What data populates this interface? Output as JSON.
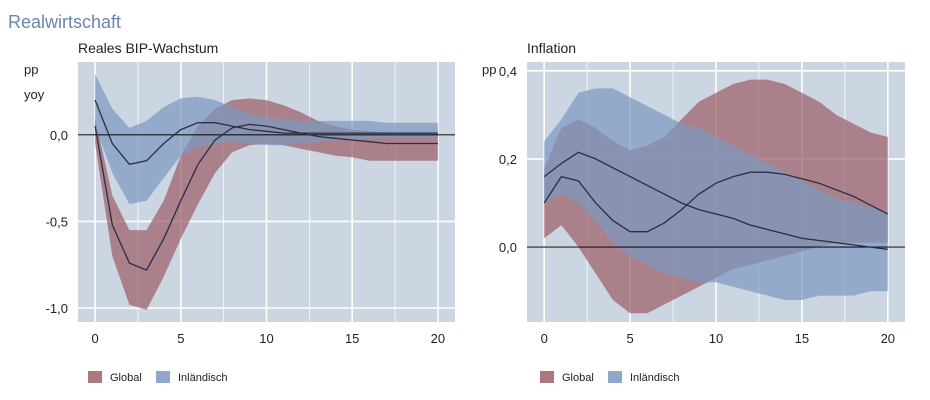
{
  "page_title": "Realwirtschaft",
  "colors": {
    "global": "#9c6068",
    "inlaendisch": "#7d98c0",
    "panel_bg": "#ccd6e2",
    "grid": "#ffffff"
  },
  "chart_data": [
    {
      "type": "area",
      "title": "Reales BIP-Wachstum",
      "ylabel": "pp yoy",
      "ylabel_lines": [
        "pp",
        "yoy"
      ],
      "xlim": [
        -1,
        21
      ],
      "ylim": [
        -1.08,
        0.42
      ],
      "xticks": [
        0,
        5,
        10,
        15,
        20
      ],
      "xtick_labels": [
        "0",
        "5",
        "10",
        "15",
        "20"
      ],
      "yticks": [
        0.0,
        -0.5,
        -1.0
      ],
      "ytick_labels": [
        "0,0",
        "-0,5",
        "-1,0"
      ],
      "grid": true,
      "legend_placement": "bottom-left",
      "x": [
        0,
        1,
        2,
        3,
        4,
        5,
        6,
        7,
        8,
        9,
        10,
        11,
        12,
        13,
        14,
        15,
        16,
        17,
        18,
        19,
        20
      ],
      "series": [
        {
          "name": "Global",
          "lower": [
            -0.05,
            -0.7,
            -0.98,
            -1.01,
            -0.82,
            -0.6,
            -0.4,
            -0.22,
            -0.1,
            -0.06,
            -0.05,
            -0.06,
            -0.08,
            -0.1,
            -0.12,
            -0.13,
            -0.15,
            -0.15,
            -0.15,
            -0.15,
            -0.15
          ],
          "upper": [
            0.1,
            -0.35,
            -0.55,
            -0.55,
            -0.38,
            -0.12,
            0.05,
            0.15,
            0.2,
            0.21,
            0.2,
            0.17,
            0.13,
            0.08,
            0.05,
            0.03,
            0.02,
            0.01,
            0.01,
            0.01,
            0.01
          ],
          "median": [
            0.05,
            -0.52,
            -0.74,
            -0.78,
            -0.6,
            -0.38,
            -0.17,
            -0.03,
            0.04,
            0.06,
            0.05,
            0.03,
            0.01,
            -0.01,
            -0.02,
            -0.03,
            -0.04,
            -0.05,
            -0.05,
            -0.05,
            -0.05
          ]
        },
        {
          "name": "Inländisch",
          "lower": [
            0.05,
            -0.22,
            -0.4,
            -0.38,
            -0.25,
            -0.12,
            -0.07,
            -0.05,
            -0.04,
            -0.05,
            -0.06,
            -0.06,
            -0.05,
            -0.04,
            -0.03,
            -0.03,
            -0.02,
            -0.02,
            -0.02,
            -0.02,
            -0.02
          ],
          "upper": [
            0.35,
            0.15,
            0.04,
            0.08,
            0.16,
            0.21,
            0.22,
            0.2,
            0.16,
            0.12,
            0.1,
            0.09,
            0.08,
            0.08,
            0.08,
            0.08,
            0.08,
            0.07,
            0.07,
            0.07,
            0.07
          ],
          "median": [
            0.2,
            -0.05,
            -0.17,
            -0.15,
            -0.05,
            0.03,
            0.07,
            0.07,
            0.05,
            0.03,
            0.02,
            0.01,
            0.01,
            0.01,
            0.01,
            0.01,
            0.01,
            0.01,
            0.01,
            0.01,
            0.01
          ]
        }
      ]
    },
    {
      "type": "area",
      "title": "Inflation",
      "ylabel": "pp",
      "ylabel_lines": [
        "pp"
      ],
      "xlim": [
        -1,
        21
      ],
      "ylim": [
        -0.17,
        0.42
      ],
      "xticks": [
        0,
        5,
        10,
        15,
        20
      ],
      "xtick_labels": [
        "0",
        "5",
        "10",
        "15",
        "20"
      ],
      "yticks": [
        0.4,
        0.2,
        0.0
      ],
      "ytick_labels": [
        "0,4",
        "0,2",
        "0,0"
      ],
      "grid": true,
      "legend_placement": "bottom-left",
      "x": [
        0,
        1,
        2,
        3,
        4,
        5,
        6,
        7,
        8,
        9,
        10,
        11,
        12,
        13,
        14,
        15,
        16,
        17,
        18,
        19,
        20
      ],
      "series": [
        {
          "name": "Global",
          "lower": [
            0.02,
            0.05,
            0.0,
            -0.06,
            -0.12,
            -0.15,
            -0.15,
            -0.13,
            -0.11,
            -0.09,
            -0.07,
            -0.05,
            -0.04,
            -0.03,
            -0.02,
            -0.01,
            0.0,
            0.01,
            0.01,
            0.01,
            0.01
          ],
          "upper": [
            0.18,
            0.27,
            0.29,
            0.27,
            0.24,
            0.22,
            0.23,
            0.25,
            0.29,
            0.33,
            0.35,
            0.37,
            0.38,
            0.38,
            0.37,
            0.35,
            0.33,
            0.3,
            0.28,
            0.26,
            0.25
          ],
          "median": [
            0.1,
            0.16,
            0.15,
            0.1,
            0.06,
            0.035,
            0.035,
            0.055,
            0.085,
            0.12,
            0.145,
            0.16,
            0.17,
            0.17,
            0.165,
            0.155,
            0.145,
            0.13,
            0.115,
            0.095,
            0.075
          ]
        },
        {
          "name": "Inländisch",
          "lower": [
            0.1,
            0.12,
            0.1,
            0.06,
            0.01,
            -0.02,
            -0.04,
            -0.06,
            -0.07,
            -0.08,
            -0.08,
            -0.09,
            -0.1,
            -0.11,
            -0.12,
            -0.12,
            -0.11,
            -0.11,
            -0.11,
            -0.1,
            -0.1
          ],
          "upper": [
            0.24,
            0.29,
            0.35,
            0.36,
            0.36,
            0.34,
            0.32,
            0.3,
            0.28,
            0.27,
            0.25,
            0.23,
            0.21,
            0.19,
            0.17,
            0.15,
            0.13,
            0.11,
            0.1,
            0.09,
            0.08
          ],
          "median": [
            0.16,
            0.19,
            0.215,
            0.2,
            0.18,
            0.16,
            0.14,
            0.12,
            0.1,
            0.085,
            0.075,
            0.065,
            0.05,
            0.04,
            0.03,
            0.02,
            0.015,
            0.01,
            0.005,
            0.0,
            -0.005
          ]
        }
      ]
    }
  ]
}
